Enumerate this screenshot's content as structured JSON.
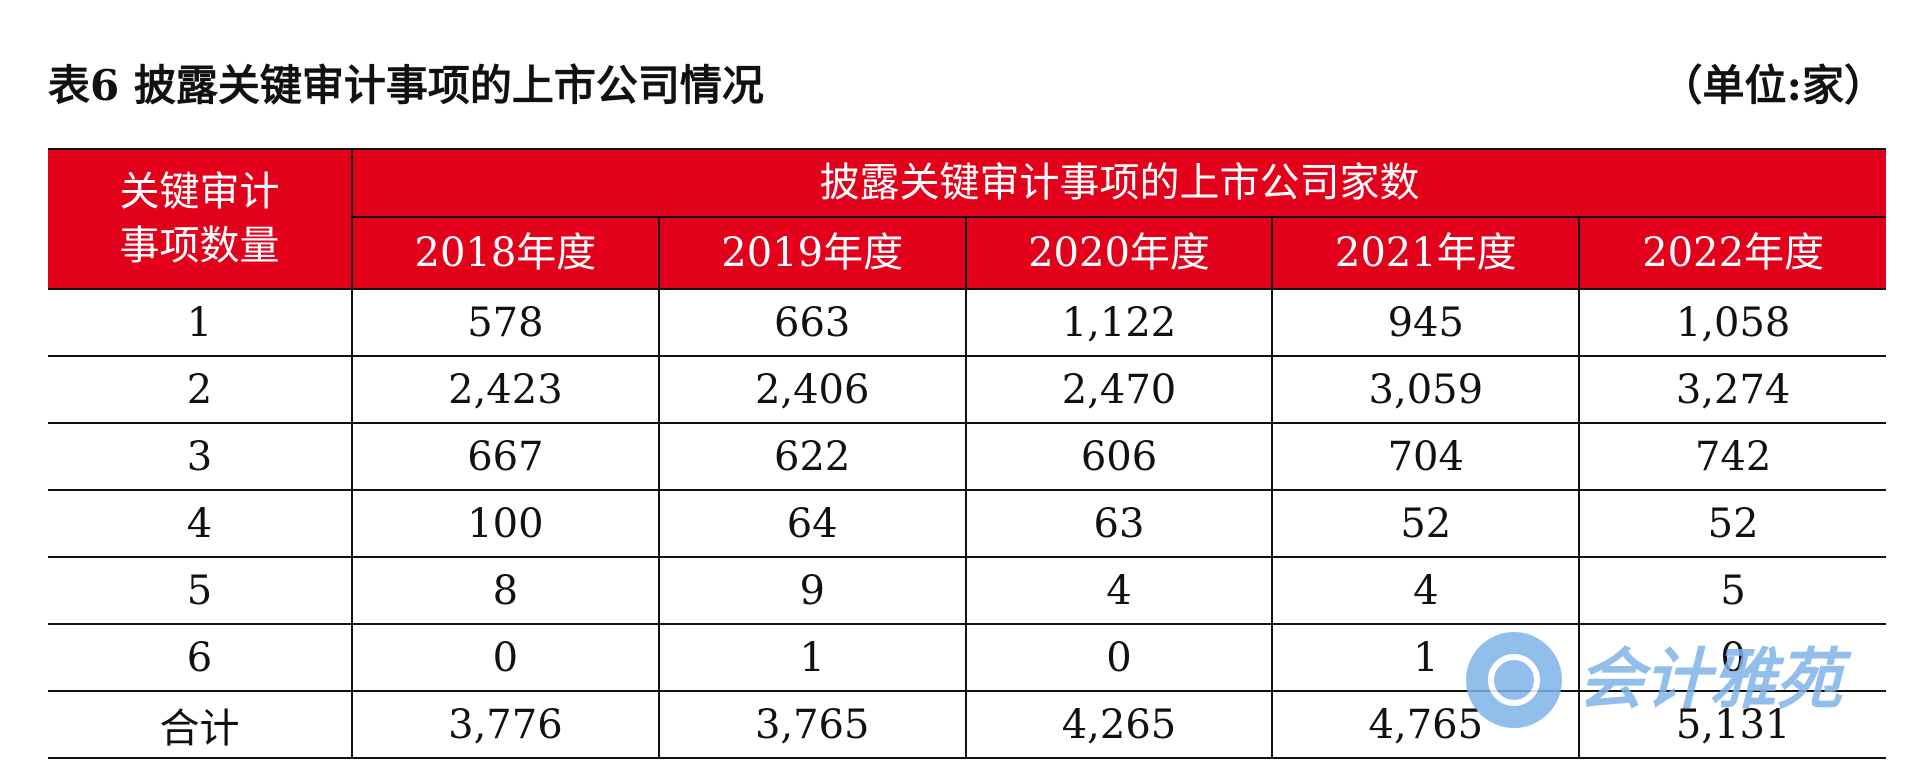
{
  "title": "表6  披露关键审计事项的上市公司情况",
  "unit": "（单位:家）",
  "chart_data": {
    "type": "table",
    "row_header": "关键审计事项数量",
    "row_header_lines": [
      "关键审计",
      "事项数量"
    ],
    "group_header": "披露关键审计事项的上市公司家数",
    "columns": [
      "2018年度",
      "2019年度",
      "2020年度",
      "2021年度",
      "2022年度"
    ],
    "rows": [
      {
        "label": "1",
        "values": [
          "578",
          "663",
          "1,122",
          "945",
          "1,058"
        ]
      },
      {
        "label": "2",
        "values": [
          "2,423",
          "2,406",
          "2,470",
          "3,059",
          "3,274"
        ]
      },
      {
        "label": "3",
        "values": [
          "667",
          "622",
          "606",
          "704",
          "742"
        ]
      },
      {
        "label": "4",
        "values": [
          "100",
          "64",
          "63",
          "52",
          "52"
        ]
      },
      {
        "label": "5",
        "values": [
          "8",
          "9",
          "4",
          "4",
          "5"
        ]
      },
      {
        "label": "6",
        "values": [
          "0",
          "1",
          "0",
          "1",
          "0"
        ]
      },
      {
        "label": "合计",
        "values": [
          "3,776",
          "3,765",
          "4,265",
          "4,765",
          "5,131"
        ]
      }
    ]
  },
  "watermark": {
    "text": "会计雅苑",
    "icon": "brand-logo-icon",
    "color": "#7fb3e8"
  },
  "colors": {
    "header_bg": "#e3001b",
    "header_text": "#ffffff",
    "rule": "#111111"
  }
}
